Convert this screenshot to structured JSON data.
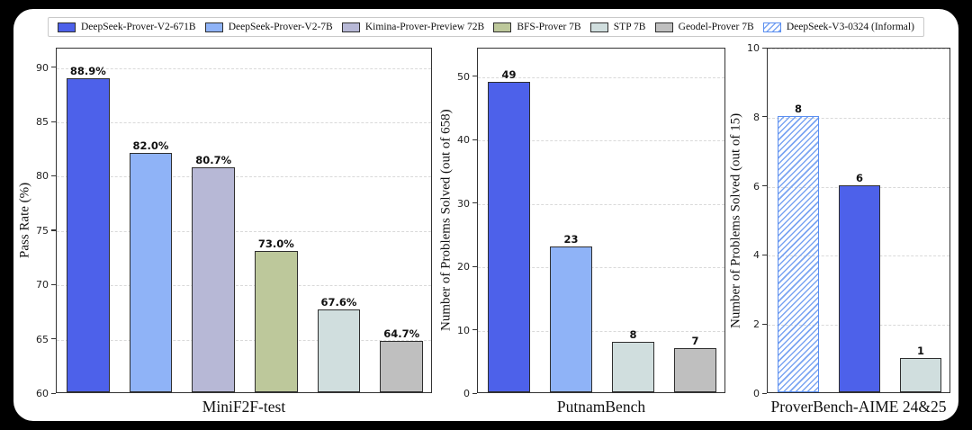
{
  "page": {
    "background": "#000000",
    "card_background": "#ffffff"
  },
  "legend": {
    "items": [
      {
        "label": "DeepSeek-Prover-V2-671B",
        "color": "#4d61ea",
        "hatch": false
      },
      {
        "label": "DeepSeek-Prover-V2-7B",
        "color": "#8fb3f7",
        "hatch": false
      },
      {
        "label": "Kimina-Prover-Preview 72B",
        "color": "#b7b8d6",
        "hatch": false
      },
      {
        "label": "BFS-Prover 7B",
        "color": "#bdc89b",
        "hatch": false
      },
      {
        "label": "STP 7B",
        "color": "#d0dede",
        "hatch": false
      },
      {
        "label": "Geodel-Prover 7B",
        "color": "#bfbfbf",
        "hatch": false
      },
      {
        "label": "DeepSeek-V3-0324 (Informal)",
        "color": "#ffffff",
        "hatch": true,
        "hatch_color": "#7aa4f2",
        "border_color": "#5b8ff0"
      }
    ]
  },
  "chart_data": [
    {
      "type": "bar",
      "title": "",
      "xlabel": "MiniF2F-test",
      "ylabel": "Pass Rate (%)",
      "ylim": [
        60,
        91.8
      ],
      "yticks": [
        60,
        65,
        70,
        75,
        80,
        85,
        90
      ],
      "grid": "dashed-horizontal",
      "bars": [
        {
          "name": "DeepSeek-Prover-V2-671B",
          "value": 88.9,
          "label": "88.9%"
        },
        {
          "name": "DeepSeek-Prover-V2-7B",
          "value": 82.0,
          "label": "82.0%"
        },
        {
          "name": "Kimina-Prover-Preview 72B",
          "value": 80.7,
          "label": "80.7%"
        },
        {
          "name": "BFS-Prover 7B",
          "value": 73.0,
          "label": "73.0%"
        },
        {
          "name": "STP 7B",
          "value": 67.6,
          "label": "67.6%"
        },
        {
          "name": "Geodel-Prover 7B",
          "value": 64.7,
          "label": "64.7%"
        }
      ]
    },
    {
      "type": "bar",
      "title": "",
      "xlabel": "PutnamBench",
      "ylabel": "Number of Problems Solved (out of 658)",
      "ylim": [
        0,
        54.5
      ],
      "yticks": [
        0,
        10,
        20,
        30,
        40,
        50
      ],
      "grid": "dashed-horizontal",
      "bars": [
        {
          "name": "DeepSeek-Prover-V2-671B",
          "value": 49,
          "label": "49"
        },
        {
          "name": "DeepSeek-Prover-V2-7B",
          "value": 23,
          "label": "23"
        },
        {
          "name": "STP 7B",
          "value": 8,
          "label": "8"
        },
        {
          "name": "Geodel-Prover 7B",
          "value": 7,
          "label": "7"
        }
      ]
    },
    {
      "type": "bar",
      "title": "",
      "xlabel": "ProverBench-AIME 24&25",
      "ylabel": "Number of Problems Solved (out of 15)",
      "ylim": [
        0,
        10
      ],
      "yticks": [
        0,
        2,
        4,
        6,
        8,
        10
      ],
      "grid": "dashed-horizontal",
      "bars": [
        {
          "name": "DeepSeek-V3-0324 (Informal)",
          "value": 8,
          "label": "8"
        },
        {
          "name": "DeepSeek-Prover-V2-671B",
          "value": 6,
          "label": "6"
        },
        {
          "name": "STP 7B",
          "value": 1,
          "label": "1"
        }
      ]
    }
  ]
}
